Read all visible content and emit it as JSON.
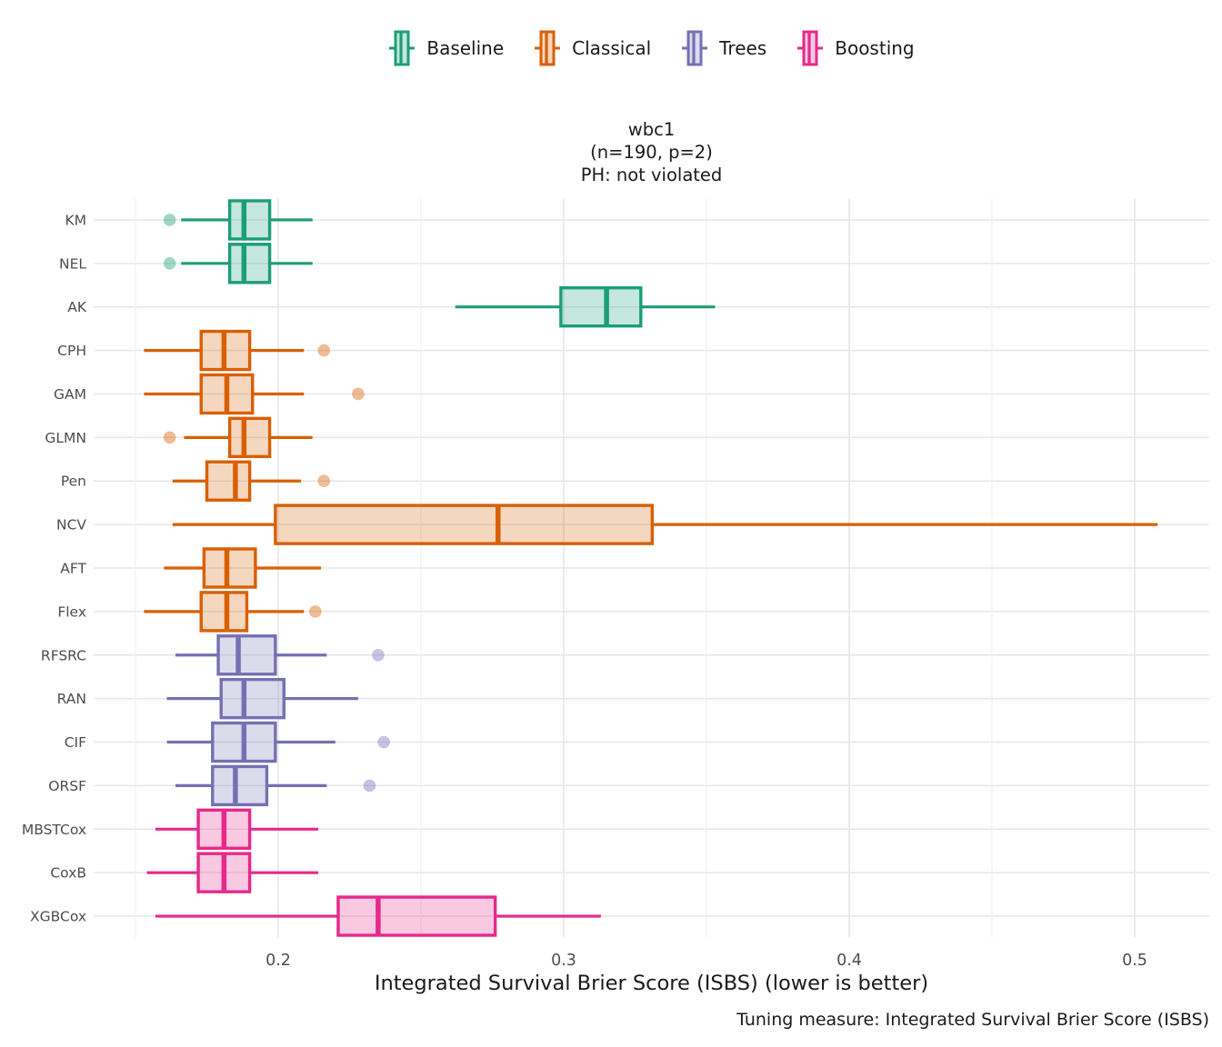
{
  "title": {
    "line1": "wbc1",
    "line2": "(n=190, p=2)",
    "line3": "PH: not violated"
  },
  "caption": "Tuning measure: Integrated Survival Brier Score (ISBS)",
  "colors": {
    "grid_major": "#E6E6E6",
    "grid_minor": "#F1F1F1",
    "axis_text": "#4D4D4D",
    "text": "#1A1A1A"
  },
  "chart_data": {
    "type": "boxplot",
    "orientation": "horizontal",
    "title_lines": [
      "wbc1",
      "(n=190, p=2)",
      "PH: not violated"
    ],
    "xlabel": "Integrated Survival Brier Score (ISBS) (lower is better)",
    "caption": "Tuning measure: Integrated Survival Brier Score (ISBS)",
    "legend_position": "top",
    "grid": true,
    "xlim": [
      0.135,
      0.526
    ],
    "x_ticks": [
      "0.2",
      "0.3",
      "0.4",
      "0.5"
    ],
    "x_minor_gridlines": [
      0.15,
      0.25,
      0.35,
      0.45
    ],
    "groups": [
      {
        "name": "Baseline",
        "color": "#1B9E77"
      },
      {
        "name": "Classical",
        "color": "#D95F02"
      },
      {
        "name": "Trees",
        "color": "#7570B3"
      },
      {
        "name": "Boosting",
        "color": "#E7298A"
      }
    ],
    "models": [
      {
        "name": "KM",
        "group": "Baseline",
        "min": 0.166,
        "q1": 0.183,
        "median": 0.188,
        "q3": 0.197,
        "max": 0.212,
        "outliers": [
          0.162
        ]
      },
      {
        "name": "NEL",
        "group": "Baseline",
        "min": 0.166,
        "q1": 0.183,
        "median": 0.188,
        "q3": 0.197,
        "max": 0.212,
        "outliers": [
          0.162
        ]
      },
      {
        "name": "AK",
        "group": "Baseline",
        "min": 0.262,
        "q1": 0.299,
        "median": 0.315,
        "q3": 0.327,
        "max": 0.353,
        "outliers": []
      },
      {
        "name": "CPH",
        "group": "Classical",
        "min": 0.153,
        "q1": 0.173,
        "median": 0.181,
        "q3": 0.19,
        "max": 0.209,
        "outliers": [
          0.216
        ]
      },
      {
        "name": "GAM",
        "group": "Classical",
        "min": 0.153,
        "q1": 0.173,
        "median": 0.182,
        "q3": 0.191,
        "max": 0.209,
        "outliers": [
          0.228
        ]
      },
      {
        "name": "GLMN",
        "group": "Classical",
        "min": 0.167,
        "q1": 0.183,
        "median": 0.188,
        "q3": 0.197,
        "max": 0.212,
        "outliers": [
          0.162
        ]
      },
      {
        "name": "Pen",
        "group": "Classical",
        "min": 0.163,
        "q1": 0.175,
        "median": 0.185,
        "q3": 0.19,
        "max": 0.208,
        "outliers": [
          0.216
        ]
      },
      {
        "name": "NCV",
        "group": "Classical",
        "min": 0.163,
        "q1": 0.199,
        "median": 0.277,
        "q3": 0.331,
        "max": 0.508,
        "outliers": []
      },
      {
        "name": "AFT",
        "group": "Classical",
        "min": 0.16,
        "q1": 0.174,
        "median": 0.182,
        "q3": 0.192,
        "max": 0.215,
        "outliers": []
      },
      {
        "name": "Flex",
        "group": "Classical",
        "min": 0.153,
        "q1": 0.173,
        "median": 0.182,
        "q3": 0.189,
        "max": 0.209,
        "outliers": [
          0.213
        ]
      },
      {
        "name": "RFSRC",
        "group": "Trees",
        "min": 0.164,
        "q1": 0.179,
        "median": 0.186,
        "q3": 0.199,
        "max": 0.217,
        "outliers": [
          0.235
        ]
      },
      {
        "name": "RAN",
        "group": "Trees",
        "min": 0.161,
        "q1": 0.18,
        "median": 0.188,
        "q3": 0.202,
        "max": 0.228,
        "outliers": []
      },
      {
        "name": "CIF",
        "group": "Trees",
        "min": 0.161,
        "q1": 0.177,
        "median": 0.188,
        "q3": 0.199,
        "max": 0.22,
        "outliers": [
          0.237
        ]
      },
      {
        "name": "ORSF",
        "group": "Trees",
        "min": 0.164,
        "q1": 0.177,
        "median": 0.185,
        "q3": 0.196,
        "max": 0.217,
        "outliers": [
          0.232
        ]
      },
      {
        "name": "MBSTCox",
        "group": "Boosting",
        "min": 0.157,
        "q1": 0.172,
        "median": 0.181,
        "q3": 0.19,
        "max": 0.214,
        "outliers": []
      },
      {
        "name": "CoxB",
        "group": "Boosting",
        "min": 0.154,
        "q1": 0.172,
        "median": 0.181,
        "q3": 0.19,
        "max": 0.214,
        "outliers": []
      },
      {
        "name": "XGBCox",
        "group": "Boosting",
        "min": 0.157,
        "q1": 0.221,
        "median": 0.235,
        "q3": 0.276,
        "max": 0.313,
        "outliers": []
      }
    ]
  }
}
